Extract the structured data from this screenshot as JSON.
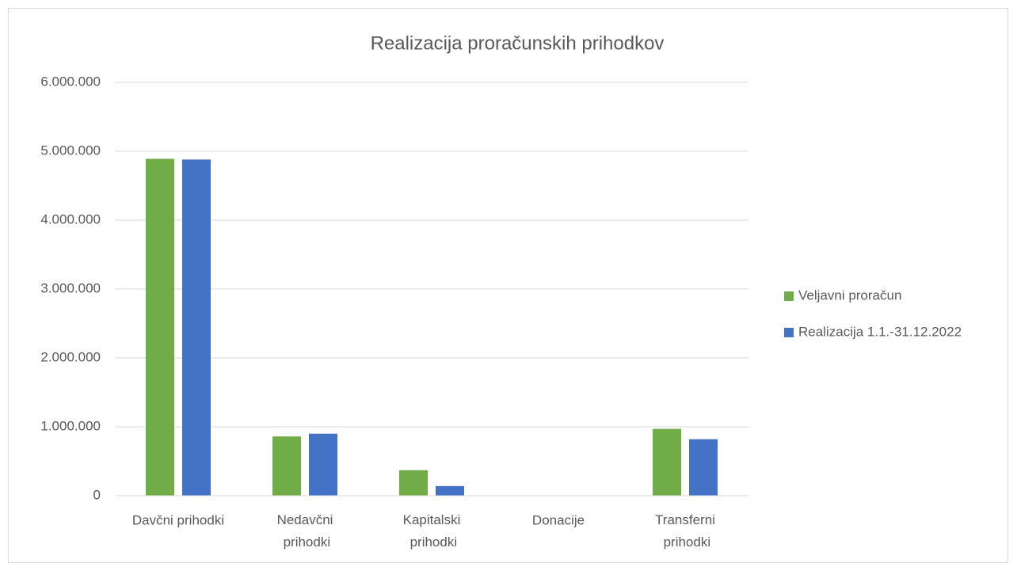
{
  "chart_data": {
    "type": "bar",
    "title": "Realizacija proračunskih prihodkov",
    "categories": [
      "Davčni prihodki",
      "Nedavčni prihodki",
      "Kapitalski prihodki",
      "Donacije",
      "Transferni prihodki"
    ],
    "series": [
      {
        "name": "Veljavni proračun",
        "color": "#70ad47",
        "values": [
          4890000,
          860000,
          370000,
          0,
          970000
        ]
      },
      {
        "name": "Realizacija 1.1.-31.12.2022",
        "color": "#4472c4",
        "values": [
          4880000,
          900000,
          140000,
          0,
          820000
        ]
      }
    ],
    "ylim": [
      0,
      6000000
    ],
    "yticks": [
      0,
      {
        "value": 1000000,
        "label": "1.000.000"
      },
      {
        "value": 2000000,
        "label": "2.000.000"
      },
      {
        "value": 3000000,
        "label": "3.000.000"
      },
      {
        "value": 4000000,
        "label": "4.000.000"
      },
      {
        "value": 5000000,
        "label": "5.000.000"
      },
      {
        "value": 6000000,
        "label": "6.000.000"
      }
    ],
    "grid": true,
    "legend": "right"
  }
}
